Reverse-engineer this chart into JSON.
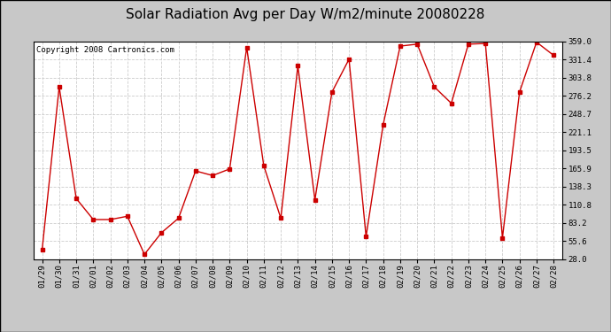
{
  "title": "Solar Radiation Avg per Day W/m2/minute 20080228",
  "copyright": "Copyright 2008 Cartronics.com",
  "dates": [
    "01/29",
    "01/30",
    "01/31",
    "02/01",
    "02/02",
    "02/03",
    "02/04",
    "02/05",
    "02/06",
    "02/07",
    "02/08",
    "02/09",
    "02/10",
    "02/11",
    "02/12",
    "02/13",
    "02/14",
    "02/15",
    "02/16",
    "02/17",
    "02/18",
    "02/19",
    "02/20",
    "02/21",
    "02/22",
    "02/23",
    "02/24",
    "02/25",
    "02/26",
    "02/27",
    "02/28"
  ],
  "values": [
    42,
    290,
    120,
    88,
    88,
    93,
    35,
    68,
    90,
    162,
    155,
    165,
    350,
    170,
    90,
    322,
    118,
    282,
    332,
    62,
    232,
    352,
    355,
    290,
    265,
    355,
    356,
    60,
    282,
    358,
    338
  ],
  "line_color": "#cc0000",
  "marker": "s",
  "marker_size": 2.5,
  "grid_color": "#cccccc",
  "bg_color": "#ffffff",
  "ylim": [
    28.0,
    359.0
  ],
  "yticks": [
    28.0,
    55.6,
    83.2,
    110.8,
    138.3,
    165.9,
    193.5,
    221.1,
    248.7,
    276.2,
    303.8,
    331.4,
    359.0
  ],
  "title_fontsize": 11,
  "copyright_fontsize": 6.5,
  "tick_fontsize": 6.5,
  "outer_bg": "#c8c8c8",
  "inner_border": "#888888"
}
